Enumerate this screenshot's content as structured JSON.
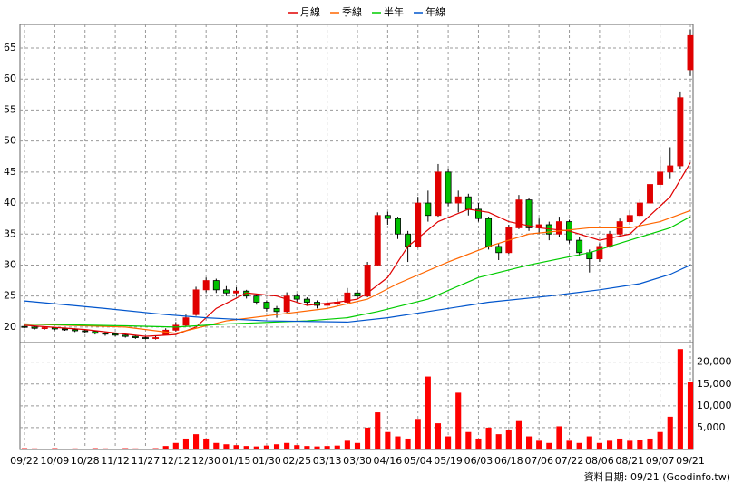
{
  "chart_data": {
    "type": "candlestick",
    "categories": [
      "09/22",
      null,
      null,
      "10/09",
      null,
      null,
      "10/28",
      null,
      null,
      "11/12",
      null,
      null,
      "11/27",
      null,
      null,
      "12/12",
      null,
      null,
      "12/30",
      null,
      null,
      "01/15",
      null,
      null,
      "01/30",
      null,
      null,
      "02/25",
      null,
      null,
      "03/13",
      null,
      null,
      "03/30",
      null,
      null,
      "04/16",
      null,
      null,
      "05/04",
      null,
      null,
      "05/19",
      null,
      null,
      "06/03",
      null,
      null,
      "06/18",
      null,
      null,
      "07/06",
      null,
      null,
      "07/22",
      null,
      null,
      "08/06",
      null,
      null,
      "08/21",
      null,
      null,
      "09/07",
      null,
      null,
      "09/21"
    ],
    "open": [
      20.1,
      20.0,
      19.8,
      19.9,
      19.7,
      19.6,
      19.4,
      19.3,
      19.0,
      18.9,
      18.7,
      18.5,
      18.3,
      18.2,
      18.8,
      19.5,
      20.3,
      22.0,
      26.0,
      27.5,
      26.0,
      25.5,
      25.8,
      25.0,
      24.0,
      23.0,
      22.5,
      25.0,
      24.5,
      24.0,
      23.5,
      23.8,
      24.0,
      25.5,
      25.0,
      30.0,
      38.0,
      37.5,
      35.0,
      33.0,
      40.0,
      38.0,
      45.0,
      40.0,
      41.0,
      39.0,
      37.5,
      33.0,
      32.0,
      36.0,
      40.5,
      36.0,
      36.5,
      35.0,
      37.0,
      34.0,
      32.0,
      31.0,
      33.0,
      35.0,
      37.0,
      38.0,
      40.0,
      43.0,
      45.0,
      46.0,
      61.5
    ],
    "high": [
      20.3,
      20.2,
      20.1,
      20.0,
      19.9,
      19.8,
      19.6,
      19.4,
      19.2,
      19.1,
      18.9,
      18.7,
      18.5,
      18.6,
      19.8,
      20.8,
      22.0,
      26.5,
      28.0,
      27.8,
      26.6,
      26.4,
      26.0,
      25.2,
      24.3,
      23.4,
      25.6,
      25.4,
      24.8,
      24.3,
      24.3,
      24.6,
      26.3,
      26.0,
      30.5,
      38.5,
      38.6,
      37.8,
      35.5,
      41.0,
      42.0,
      46.3,
      45.5,
      42.0,
      41.5,
      40.0,
      37.8,
      33.5,
      36.5,
      41.3,
      40.8,
      37.5,
      37.0,
      37.8,
      37.3,
      34.5,
      32.5,
      33.5,
      35.5,
      37.5,
      38.8,
      40.6,
      43.8,
      47.5,
      49.0,
      58.0,
      68.0
    ],
    "low": [
      19.8,
      19.6,
      19.6,
      19.5,
      19.4,
      19.2,
      19.1,
      18.8,
      18.6,
      18.5,
      18.3,
      18.1,
      18.0,
      18.0,
      18.7,
      19.3,
      20.1,
      21.8,
      25.6,
      25.5,
      25.0,
      25.0,
      24.6,
      23.6,
      22.5,
      21.5,
      22.3,
      24.0,
      23.4,
      23.0,
      23.1,
      23.4,
      23.8,
      24.5,
      24.8,
      29.8,
      36.5,
      34.2,
      30.5,
      32.8,
      37.0,
      37.8,
      39.5,
      38.5,
      38.0,
      37.0,
      32.5,
      30.8,
      31.8,
      35.8,
      35.5,
      35.0,
      34.0,
      34.5,
      33.5,
      31.5,
      28.8,
      30.5,
      32.8,
      34.8,
      36.5,
      37.8,
      39.5,
      42.5,
      44.0,
      45.5,
      60.5
    ],
    "close": [
      20.0,
      19.8,
      19.9,
      19.7,
      19.6,
      19.4,
      19.3,
      19.0,
      18.9,
      18.7,
      18.5,
      18.3,
      18.2,
      18.3,
      19.5,
      20.3,
      21.5,
      26.0,
      27.5,
      26.0,
      25.5,
      25.8,
      25.0,
      24.0,
      23.0,
      22.5,
      25.0,
      24.5,
      24.0,
      23.5,
      23.8,
      24.0,
      25.5,
      25.0,
      30.0,
      38.0,
      37.5,
      35.0,
      33.0,
      40.0,
      38.0,
      45.0,
      40.0,
      41.0,
      39.0,
      37.5,
      33.0,
      32.0,
      36.0,
      40.5,
      36.0,
      36.5,
      35.0,
      37.0,
      34.0,
      32.0,
      31.0,
      33.0,
      35.0,
      37.0,
      38.0,
      40.0,
      43.0,
      45.0,
      46.0,
      57.0,
      67.0
    ],
    "up_color": "#e00000",
    "down_color": "#00c000",
    "ylim": [
      17.5,
      68.8
    ],
    "yticks": [
      20,
      25,
      30,
      35,
      40,
      45,
      50,
      55,
      60,
      65
    ],
    "grid": true,
    "series": [
      {
        "name": "月線",
        "color": "#e00000",
        "x": [
          0,
          6,
          12,
          15,
          17,
          19,
          22,
          25,
          28,
          31,
          33,
          34,
          36,
          38,
          41,
          44,
          46,
          48,
          51,
          54,
          57,
          60,
          62,
          64,
          66
        ],
        "values": [
          20.3,
          19.6,
          18.5,
          18.8,
          20,
          23,
          25.5,
          25,
          23.5,
          24,
          24.5,
          25.5,
          28,
          33,
          37,
          39,
          38.5,
          37,
          36,
          35.5,
          34,
          35,
          38,
          41,
          46.5
        ]
      },
      {
        "name": "季線",
        "color": "#ff6600",
        "x": [
          0,
          10,
          15,
          20,
          25,
          30,
          34,
          37,
          42,
          46,
          50,
          56,
          60,
          63,
          66
        ],
        "values": [
          20.5,
          20,
          19,
          21,
          22,
          23,
          24.5,
          27,
          30.5,
          33,
          35,
          36,
          36,
          37,
          38.8
        ]
      },
      {
        "name": "半年",
        "color": "#00cc00",
        "x": [
          0,
          10,
          15,
          20,
          28,
          32,
          35,
          40,
          45,
          50,
          56,
          60,
          64,
          66
        ],
        "values": [
          20.5,
          20.2,
          20,
          20.5,
          21,
          21.5,
          22.5,
          24.5,
          28,
          30,
          32,
          34,
          36,
          37.8
        ]
      },
      {
        "name": "年線",
        "color": "#0055cc",
        "x": [
          0,
          8,
          14,
          18,
          24,
          32,
          36,
          40,
          46,
          52,
          57,
          61,
          64,
          66
        ],
        "values": [
          24.2,
          23,
          22,
          21.5,
          21,
          20.8,
          21.5,
          22.5,
          24,
          25,
          26,
          27,
          28.5,
          30
        ]
      }
    ],
    "volume": {
      "color": "#ff0000",
      "values": [
        300,
        250,
        200,
        300,
        200,
        250,
        200,
        300,
        250,
        200,
        300,
        250,
        200,
        300,
        800,
        1500,
        2500,
        3500,
        2500,
        1500,
        1200,
        1000,
        800,
        700,
        900,
        1200,
        1500,
        1000,
        800,
        700,
        800,
        900,
        2000,
        1500,
        5000,
        8500,
        4000,
        3000,
        2500,
        7000,
        16700,
        6000,
        3000,
        13000,
        4000,
        2500,
        5000,
        3500,
        4500,
        6500,
        3000,
        2000,
        1500,
        5300,
        2000,
        1500,
        3000,
        1500,
        2000,
        2500,
        2000,
        2200,
        2500,
        4000,
        7500,
        23000,
        15500
      ],
      "ylim": [
        0,
        24500
      ],
      "yticks": [
        {
          "value": 5000,
          "label": "5,000"
        },
        {
          "value": 10000,
          "label": "10,000"
        },
        {
          "value": 15000,
          "label": "15,000"
        },
        {
          "value": 20000,
          "label": "20,000"
        }
      ]
    },
    "source": "資料日期: 09/21 (Goodinfo.tw)"
  }
}
